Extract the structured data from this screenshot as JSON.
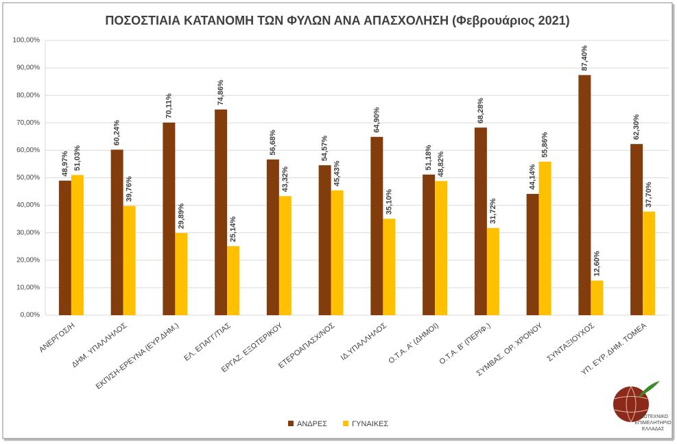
{
  "chart_data": {
    "type": "bar",
    "title": "ΠΟΣΟΣΤΙΑΙΑ ΚΑΤΑΝΟΜΗ ΤΩΝ ΦΥΛΩΝ ΑΝΑ ΑΠΑΣΧΟΛΗΣΗ (Φεβρουάριος 2021)",
    "categories": [
      "ΑΝΕΡΓΟΣ/Η",
      "ΔΗΜ. ΥΠΑΛΛΗΛΟΣ",
      "ΕΚΠ/ΣΗ-ΕΡΕΥΝΑ (ΕΥΡ.ΔΗΜ.)",
      "ΕΛ. ΕΠΑΓΓ/ΤΙΑΣ",
      "ΕΡΓΑΖ. ΕΞΩΤΕΡΙΚΟΥ",
      "ΕΤΕΡΟΑΠΑΣΧ/ΝΟΣ",
      "ΙΔ.ΥΠΑΛΛΗΛΟΣ",
      "Ο.Τ.Α. Α' (ΔΗΜΟΙ)",
      "Ο.Τ.Α. Β' (ΠΕΡΙΦ.)",
      "ΣΥΜΒΑΣ. ΟΡ. ΧΡΟΝΟΥ",
      "ΣΥΝΤΑΞΙΟΥΧΟΣ",
      "ΥΠ. ΕΥΡ. ΔΗΜ. ΤΟΜΕΑ"
    ],
    "series": [
      {
        "name": "ΑΝΔΡΕΣ",
        "color": "#833c0c",
        "values": [
          48.97,
          60.24,
          70.11,
          74.86,
          56.68,
          54.57,
          64.9,
          51.18,
          68.28,
          44.14,
          87.4,
          62.3
        ],
        "value_labels": [
          "48,97%",
          "60,24%",
          "70,11%",
          "74,86%",
          "56,68%",
          "54,57%",
          "64,90%",
          "51,18%",
          "68,28%",
          "44,14%",
          "87,40%",
          "62,30%"
        ]
      },
      {
        "name": "ΓΥΝΑΙΚΕΣ",
        "color": "#ffc000",
        "values": [
          51.03,
          39.76,
          29.89,
          25.14,
          43.32,
          45.43,
          35.1,
          48.82,
          31.72,
          55.86,
          12.6,
          37.7
        ],
        "value_labels": [
          "51,03%",
          "39,76%",
          "29,89%",
          "25,14%",
          "43,32%",
          "45,43%",
          "35,10%",
          "48,82%",
          "31,72%",
          "55,86%",
          "12,60%",
          "37,70%"
        ]
      }
    ],
    "ylim": [
      0,
      100
    ],
    "yticks": [
      {
        "value": 0,
        "label": "0,00%"
      },
      {
        "value": 10,
        "label": "10,00%"
      },
      {
        "value": 20,
        "label": "20,00%"
      },
      {
        "value": 30,
        "label": "30,00%"
      },
      {
        "value": 40,
        "label": "40,00%"
      },
      {
        "value": 50,
        "label": "50,00%"
      },
      {
        "value": 60,
        "label": "60,00%"
      },
      {
        "value": 70,
        "label": "70,00%"
      },
      {
        "value": 80,
        "label": "80,00%"
      },
      {
        "value": 90,
        "label": "90,00%"
      },
      {
        "value": 100,
        "label": "100,00%"
      }
    ],
    "grid": true,
    "legend": "bottom"
  },
  "logo_text": [
    "ΓΕΩΤΕΧΝΙΚΟ",
    "ΕΠΙΜΕΛΗΤΗΡΙΟ",
    "ΕΛΛΑΔΑΣ"
  ]
}
